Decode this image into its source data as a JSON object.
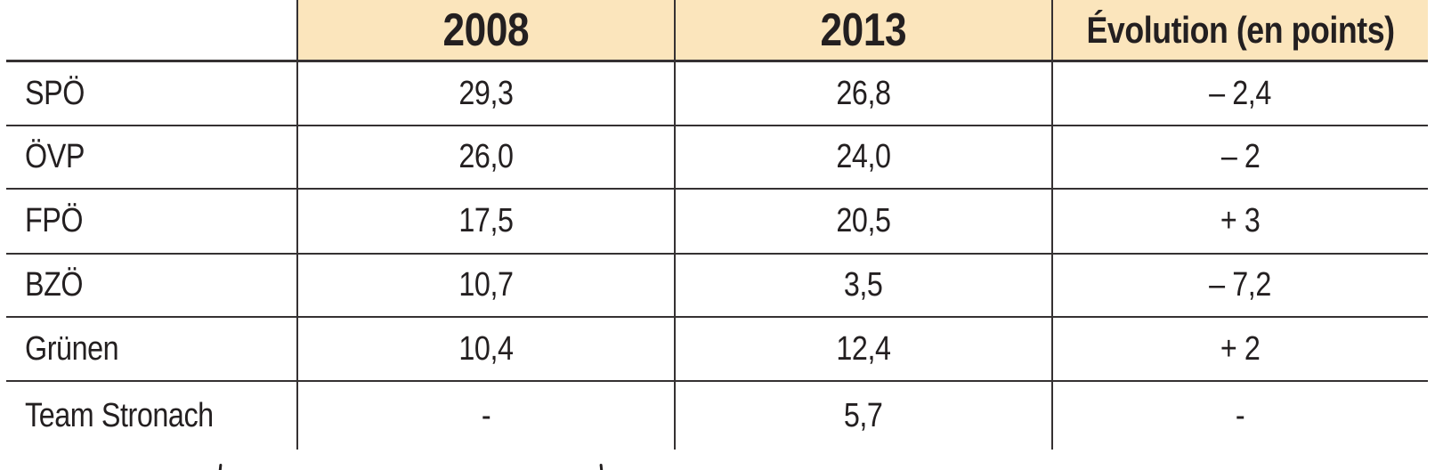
{
  "colors": {
    "header_background": "#fbe5bc",
    "text": "#231f20",
    "grid_line": "#353132",
    "page_background": "#ffffff"
  },
  "chart_data": {
    "type": "table",
    "title": "",
    "columns": [
      "",
      "2008",
      "2013",
      "Évolution (en points)"
    ],
    "categories": [
      "SPÖ",
      "ÖVP",
      "FPÖ",
      "BZÖ",
      "Grünen",
      "Team Stronach"
    ],
    "rows": [
      [
        "SPÖ",
        "29,3",
        "26,8",
        "– 2,4"
      ],
      [
        "ÖVP",
        "26,0",
        "24,0",
        "– 2"
      ],
      [
        "FPÖ",
        "17,5",
        "20,5",
        "+ 3"
      ],
      [
        "BZÖ",
        "10,7",
        "3,5",
        "– 7,2"
      ],
      [
        "Grünen",
        "10,4",
        "12,4",
        "+ 2"
      ],
      [
        "Team Stronach",
        "-",
        "5,7",
        "-"
      ]
    ],
    "series": [
      {
        "name": "2008",
        "values": [
          29.3,
          26.0,
          17.5,
          10.7,
          10.4,
          null
        ]
      },
      {
        "name": "2013",
        "values": [
          26.8,
          24.0,
          20.5,
          3.5,
          12.4,
          5.7
        ]
      },
      {
        "name": "Évolution (en points)",
        "values": [
          -2.4,
          -2,
          3,
          -7.2,
          2,
          null
        ]
      }
    ],
    "layout_hints": {
      "grid": "horizontal rules between all rows; vertical rules between columns; no outer top/left/right/bottom border",
      "header_style": "peach background on data columns only, first header cell plain white",
      "bottom_caption": "a caption line below the table is cut off by the screenshot edge (only glyph tops of two parentheses visible)"
    }
  }
}
